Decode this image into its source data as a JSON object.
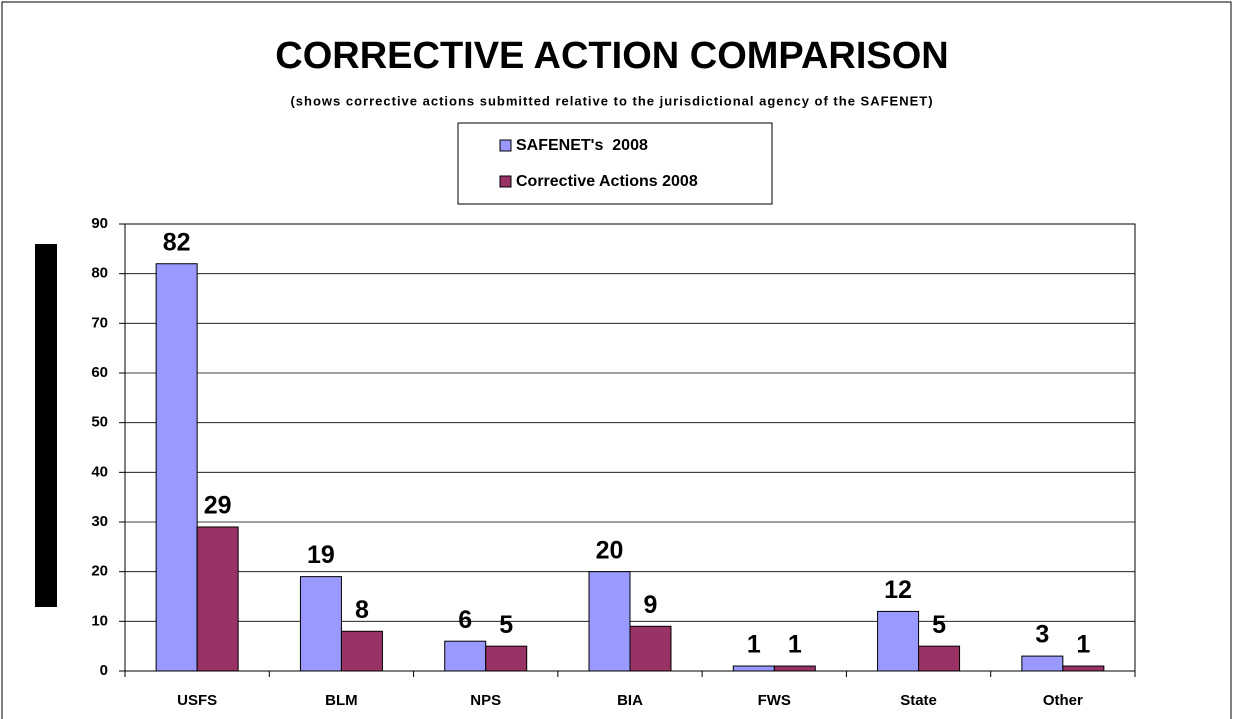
{
  "chart_data": {
    "type": "bar",
    "title": "CORRECTIVE ACTION COMPARISON",
    "subtitle": "(shows corrective actions submitted relative to the jurisdictional agency of the SAFENET)",
    "categories": [
      "USFS",
      "BLM",
      "NPS",
      "BIA",
      "FWS",
      "State",
      "Other"
    ],
    "series": [
      {
        "name": "SAFENET's  2008",
        "color": "#9999ff",
        "values": [
          82,
          19,
          6,
          20,
          1,
          12,
          3
        ]
      },
      {
        "name": "Corrective Actions 2008",
        "color": "#993366",
        "values": [
          29,
          8,
          5,
          9,
          1,
          5,
          1
        ]
      }
    ],
    "ylim": [
      0,
      90
    ],
    "yticks": [
      0,
      10,
      20,
      30,
      40,
      50,
      60,
      70,
      80,
      90
    ],
    "grid": true,
    "legend": "top"
  }
}
